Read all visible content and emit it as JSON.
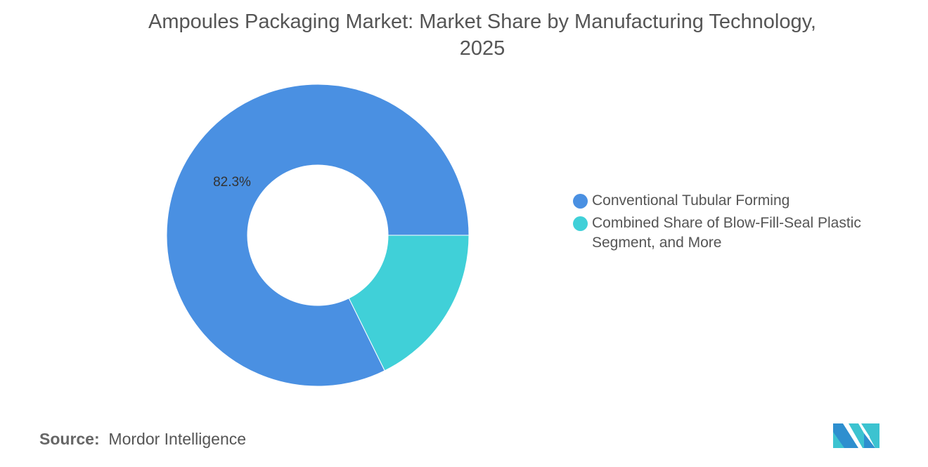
{
  "title_line1": "Ampoules Packaging Market: Market Share by Manufacturing Technology,",
  "title_line2": "2025",
  "chart_data": {
    "type": "pie",
    "donut": true,
    "title": "Ampoules Packaging Market: Market Share by Manufacturing Technology, 2025",
    "categories": [
      "Conventional Tubular Forming",
      "Combined Share of Blow-Fill-Seal Plastic Segment, and More"
    ],
    "values": [
      82.3,
      17.7
    ],
    "colors": [
      "#4a90e2",
      "#40d0d8"
    ],
    "data_labels": [
      "82.3%",
      ""
    ],
    "legend_placement": "right"
  },
  "legend": {
    "item1": "Conventional Tubular Forming",
    "item2_line1": "Combined Share of Blow-Fill-Seal Plastic",
    "item2_line2": "Segment, and More"
  },
  "source": {
    "label": "Source:",
    "value": "Mordor Intelligence"
  }
}
